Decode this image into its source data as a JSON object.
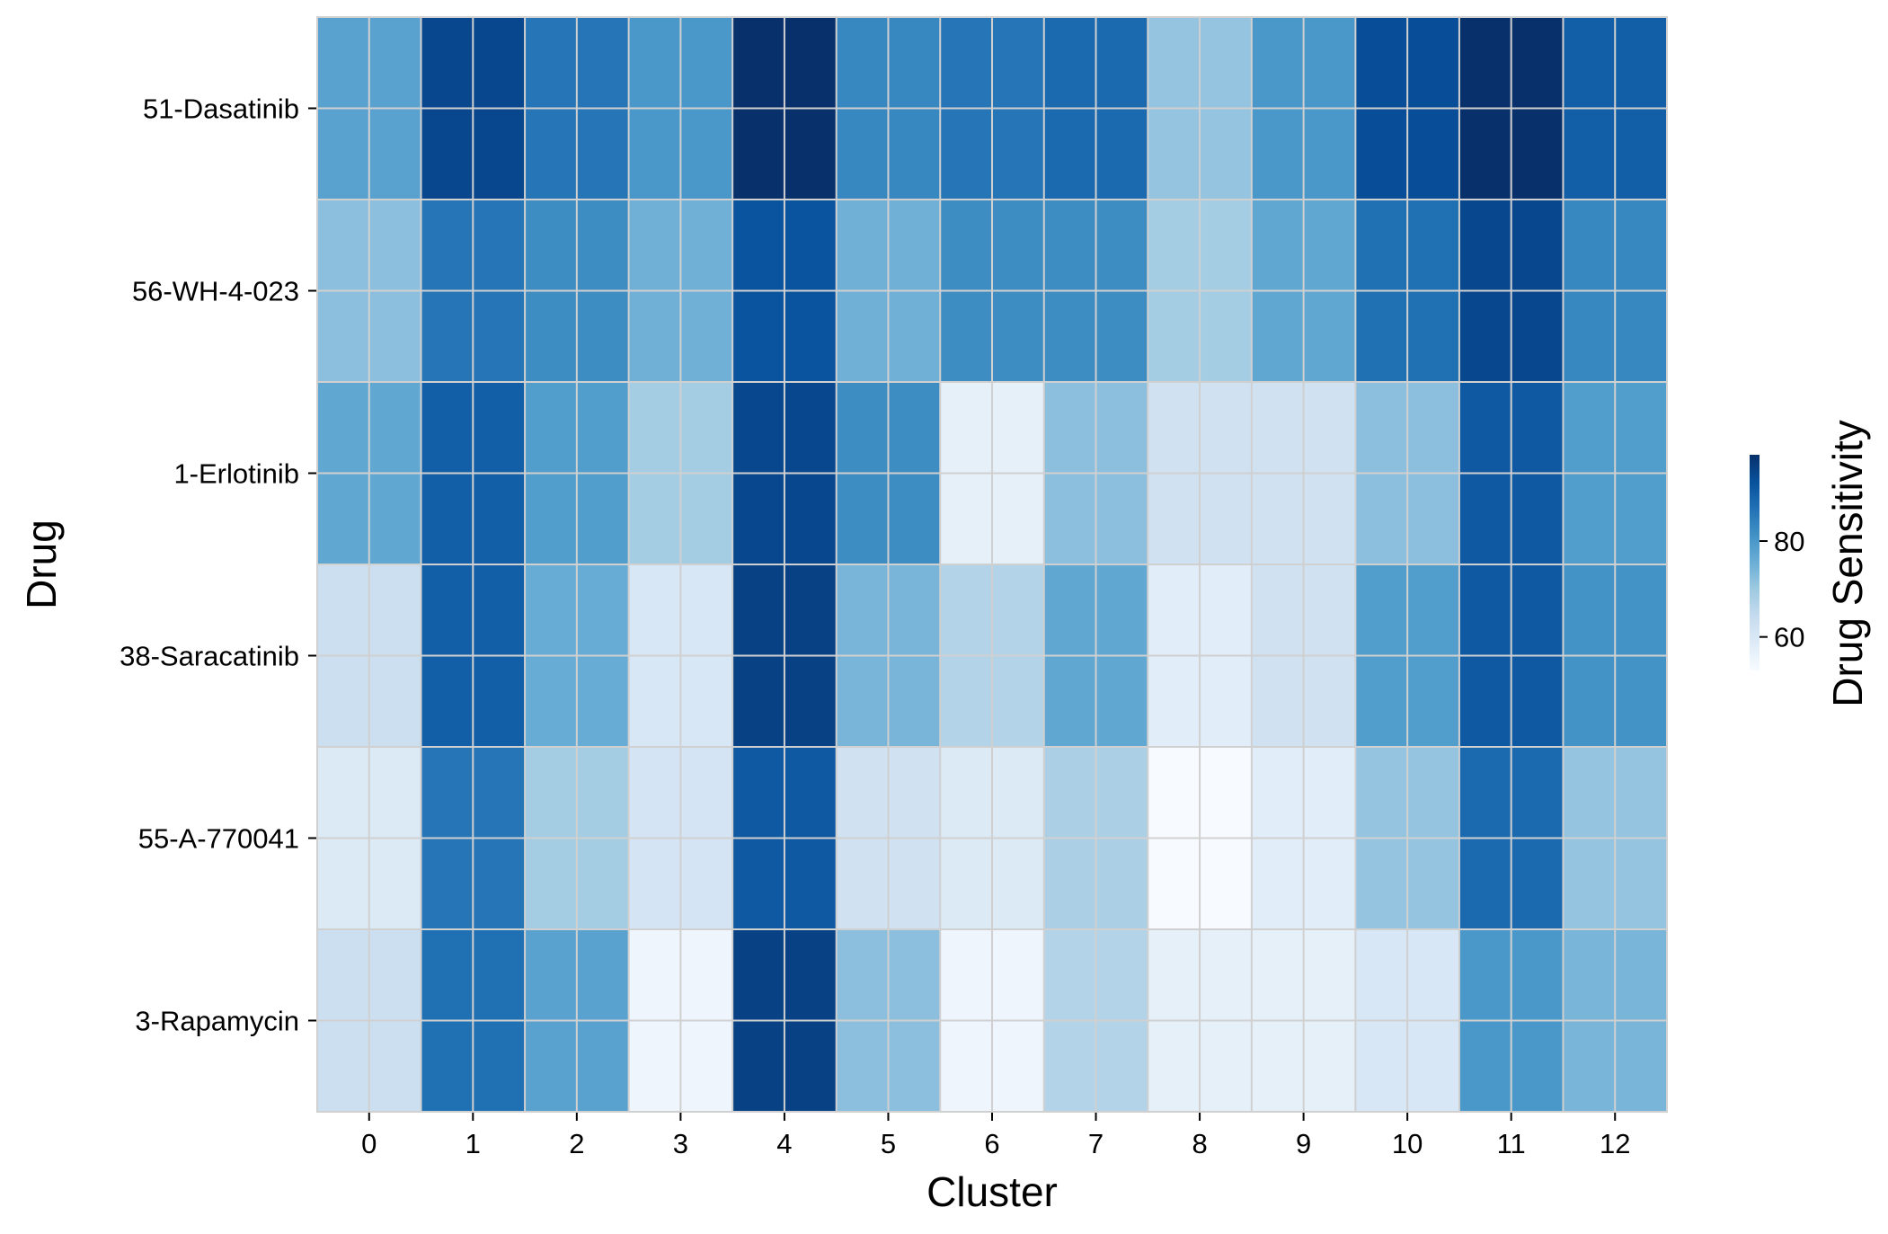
{
  "chart_data": {
    "type": "heatmap",
    "title": "",
    "xlabel": "Cluster",
    "ylabel": "Drug",
    "colorbar_label": "Drug Sensitivity",
    "colorbar_ticks": [
      60,
      80
    ],
    "colorbar_range": [
      53,
      98
    ],
    "colormap": "Blues",
    "grid": true,
    "grid_color": "#d0d0d0",
    "x_categories": [
      "0",
      "1",
      "2",
      "3",
      "4",
      "5",
      "6",
      "7",
      "8",
      "9",
      "10",
      "11",
      "12"
    ],
    "y_categories": [
      "51-Dasatinib",
      "56-WH-4-023",
      "1-Erlotinib",
      "38-Saracatinib",
      "55-A-770041",
      "3-Rapamycin"
    ],
    "values": [
      [
        78,
        94,
        86,
        80,
        98,
        83,
        86,
        88,
        71,
        80,
        93,
        99,
        90
      ],
      [
        72,
        86,
        82,
        75,
        92,
        75,
        82,
        82,
        69,
        77,
        87,
        94,
        83
      ],
      [
        77,
        90,
        79,
        69,
        94,
        82,
        57,
        72,
        62,
        62,
        72,
        91,
        79
      ],
      [
        63,
        90,
        76,
        60,
        95,
        74,
        67,
        77,
        58,
        62,
        79,
        91,
        81
      ],
      [
        59,
        86,
        69,
        61,
        91,
        62,
        59,
        68,
        53,
        58,
        71,
        88,
        71
      ],
      [
        63,
        87,
        78,
        55,
        95,
        72,
        55,
        67,
        57,
        57,
        60,
        80,
        74
      ]
    ]
  }
}
